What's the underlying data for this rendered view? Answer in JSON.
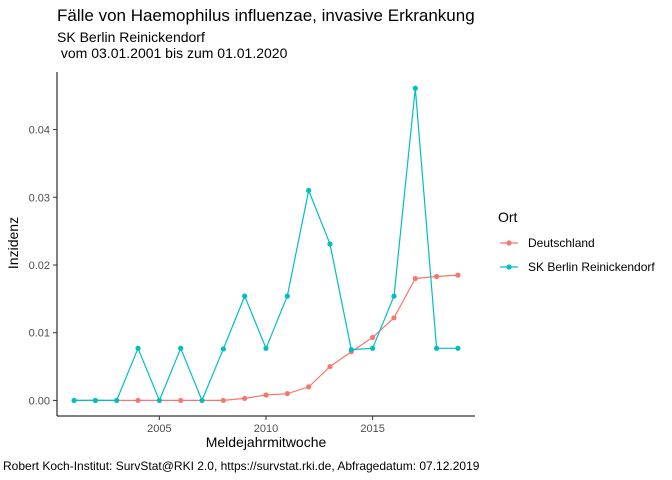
{
  "chart_data": {
    "type": "line",
    "title": "Fälle von Haemophilus influenzae, invasive Erkrankung",
    "subtitle_line1": "SK Berlin Reinickendorf",
    "subtitle_line2": " vom 03.01.2001 bis zum 01.01.2020",
    "xlabel": "Meldejahrmitwoche",
    "ylabel": "Inzidenz",
    "caption": "Robert Koch-Institut: SurvStat@RKI 2.0, https://survstat.rki.de, Abfragedatum: 07.12.2019",
    "xlim": [
      2000.2,
      2019.8
    ],
    "ylim": [
      -0.0023,
      0.0485
    ],
    "x_ticks": [
      2005,
      2010,
      2015
    ],
    "y_ticks": [
      0.0,
      0.01,
      0.02,
      0.03,
      0.04
    ],
    "y_tick_labels": [
      "0.00",
      "0.01",
      "0.02",
      "0.03",
      "0.04"
    ],
    "grid": false,
    "legend_title": "Ort",
    "legend_position": "right",
    "x": [
      2001,
      2002,
      2003,
      2004,
      2005,
      2006,
      2007,
      2008,
      2009,
      2010,
      2011,
      2012,
      2013,
      2014,
      2015,
      2016,
      2017,
      2018,
      2019
    ],
    "series": [
      {
        "name": "Deutschland",
        "color": "#F8766D",
        "values": [
          0.0,
          0.0,
          0.0,
          0.0,
          0.0,
          0.0,
          0.0,
          0.0,
          0.0003,
          0.0008,
          0.001,
          0.002,
          0.005,
          0.0072,
          0.0093,
          0.0122,
          0.018,
          0.0183,
          0.0185
        ]
      },
      {
        "name": "SK Berlin Reinickendorf",
        "color": "#00BFC4",
        "values": [
          0.0,
          0.0,
          0.0,
          0.0077,
          0.0,
          0.0077,
          0.0,
          0.0076,
          0.0154,
          0.0077,
          0.0154,
          0.031,
          0.0231,
          0.0075,
          0.0077,
          0.0154,
          0.0461,
          0.0077,
          0.0077
        ]
      }
    ]
  }
}
